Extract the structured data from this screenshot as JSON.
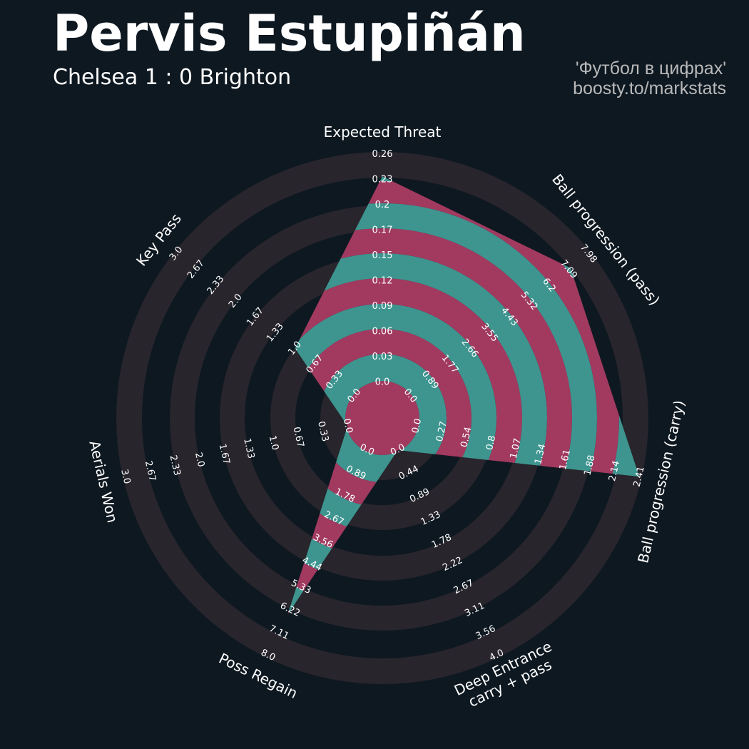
{
  "header": {
    "title": "Pervis Estupiñán",
    "subtitle": "Chelsea 1 : 0 Brighton",
    "credit_line1": "'Футбол в цифрах'",
    "credit_line2": "boosty.to/markstats"
  },
  "colors": {
    "background": "#0e1821",
    "ring": "#28252c",
    "player_band_a": "#a23a60",
    "player_band_b": "#3e958f"
  },
  "chart_data": {
    "type": "radar",
    "params": [
      {
        "label": [
          "Expected Threat"
        ],
        "min": 0.0,
        "max": 0.26,
        "value": 0.235,
        "ticks": [
          "0.0",
          "0.03",
          "0.06",
          "0.09",
          "0.12",
          "0.15",
          "0.17",
          "0.2",
          "0.23",
          "0.26"
        ]
      },
      {
        "label": [
          "Ball progression (pass)"
        ],
        "min": 0.0,
        "max": 7.98,
        "value": 7.18,
        "ticks": [
          "0.0",
          "0.89",
          "1.77",
          "2.66",
          "3.55",
          "4.43",
          "5.32",
          "6.2",
          "7.09",
          "7.98"
        ]
      },
      {
        "label": [
          "Ball progression (carry)"
        ],
        "min": 0.0,
        "max": 2.41,
        "value": 2.41,
        "ticks": [
          "0.0",
          "0.27",
          "0.54",
          "0.8",
          "1.07",
          "1.34",
          "1.61",
          "1.88",
          "2.14",
          "2.41"
        ]
      },
      {
        "label": [
          "Deep Entrance",
          "carry + pass"
        ],
        "min": 0.0,
        "max": 4.0,
        "value": 0.0,
        "ticks": [
          "0.0",
          "0.44",
          "0.89",
          "1.33",
          "1.78",
          "2.22",
          "2.67",
          "3.11",
          "3.56",
          "4.0"
        ]
      },
      {
        "label": [
          "Poss Regain"
        ],
        "min": 0.0,
        "max": 8.0,
        "value": 6.4,
        "ticks": [
          "0.0",
          "0.89",
          "1.78",
          "2.67",
          "3.56",
          "4.44",
          "5.33",
          "6.22",
          "7.11",
          "8.0"
        ]
      },
      {
        "label": [
          "Aerials Won"
        ],
        "min": 0.0,
        "max": 3.0,
        "value": 0.0,
        "ticks": [
          "0.0",
          "0.33",
          "0.67",
          "1.0",
          "1.33",
          "1.67",
          "2.0",
          "2.33",
          "2.67",
          "3.0"
        ]
      },
      {
        "label": [
          "Key Pass"
        ],
        "min": 0.0,
        "max": 3.0,
        "value": 1.0,
        "ticks": [
          "0.0",
          "0.33",
          "0.67",
          "1.0",
          "1.33",
          "1.67",
          "2.0",
          "2.33",
          "2.67",
          "3.0"
        ]
      }
    ]
  }
}
